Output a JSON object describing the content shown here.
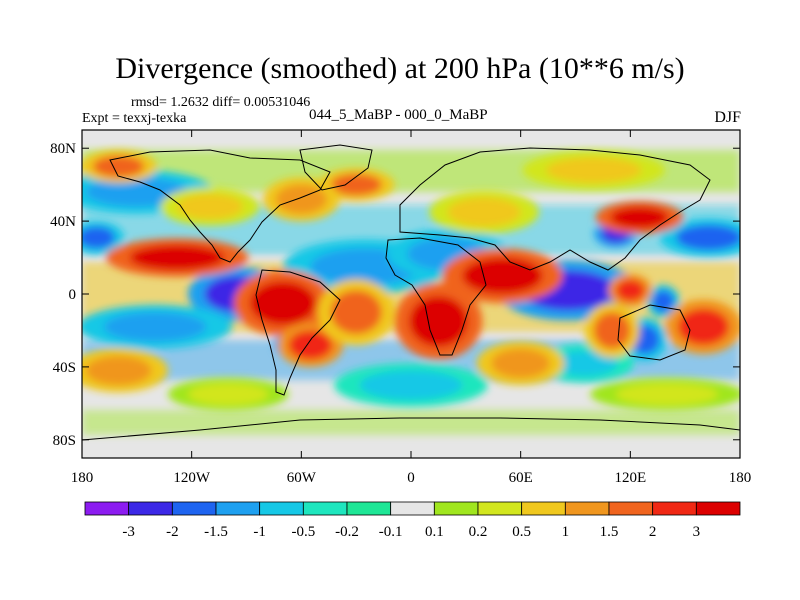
{
  "chart_data": {
    "type": "heatmap",
    "title": "Divergence (smoothed) at 200 hPa (10**6 m/s)",
    "stats_text": "rmsd= 1.2632 diff= 0.00531046",
    "experiment_text": "Expt = texxj-texka",
    "subtitle": "044_5_MaBP - 000_0_MaBP",
    "season": "DJF",
    "x_ticks": [
      "180",
      "120W",
      "60W",
      "0",
      "60E",
      "120E",
      "180"
    ],
    "y_ticks": [
      "80N",
      "40N",
      "0",
      "40S",
      "80S"
    ],
    "xlim": [
      -180,
      180
    ],
    "ylim": [
      -90,
      90
    ],
    "colorbar": {
      "labels": [
        "-3",
        "-2",
        "-1.5",
        "-1",
        "-0.5",
        "-0.2",
        "-0.1",
        "0.1",
        "0.2",
        "0.5",
        "1",
        "1.5",
        "2",
        "3"
      ],
      "colors": [
        "#8c1cf0",
        "#3c28e6",
        "#1e64f0",
        "#1ea0f0",
        "#16c8e6",
        "#1ee6be",
        "#1ee696",
        "#e6e6e6",
        "#a0e61e",
        "#d2e61e",
        "#f0c81e",
        "#f0961e",
        "#f0641e",
        "#f02814",
        "#dc0000"
      ]
    },
    "blobs": [
      {
        "lon": -95,
        "lat": 0,
        "rx": 18,
        "ry": 10,
        "level": -3
      },
      {
        "lon": 86,
        "lat": 2,
        "rx": 26,
        "ry": 11,
        "level": -3
      },
      {
        "lon": -63,
        "lat": -27,
        "rx": 8,
        "ry": 6,
        "level": -3
      },
      {
        "lon": 112,
        "lat": 33,
        "rx": 8,
        "ry": 5,
        "level": -3
      },
      {
        "lon": 163,
        "lat": 31,
        "rx": 18,
        "ry": 7,
        "level": -2
      },
      {
        "lon": -172,
        "lat": 31,
        "rx": 10,
        "ry": 6,
        "level": -2
      },
      {
        "lon": 128,
        "lat": -25,
        "rx": 8,
        "ry": 8,
        "level": -2
      },
      {
        "lon": 138,
        "lat": -4,
        "rx": 6,
        "ry": 6,
        "level": -2
      },
      {
        "lon": -150,
        "lat": 56,
        "rx": 28,
        "ry": 8,
        "level": -1.5
      },
      {
        "lon": -25,
        "lat": 15,
        "rx": 30,
        "ry": 10,
        "level": -1.5
      },
      {
        "lon": 20,
        "lat": 22,
        "rx": 22,
        "ry": 9,
        "level": -1.5
      },
      {
        "lon": -140,
        "lat": -18,
        "rx": 28,
        "ry": 8,
        "level": -1.5
      },
      {
        "lon": 95,
        "lat": -38,
        "rx": 18,
        "ry": 7,
        "level": -1
      },
      {
        "lon": 0,
        "lat": -50,
        "rx": 28,
        "ry": 8,
        "level": -1
      },
      {
        "lon": -128,
        "lat": 20,
        "rx": 26,
        "ry": 7,
        "level": 3
      },
      {
        "lon": -70,
        "lat": -5,
        "rx": 18,
        "ry": 12,
        "level": 3
      },
      {
        "lon": 15,
        "lat": -15,
        "rx": 16,
        "ry": 14,
        "level": 3
      },
      {
        "lon": 50,
        "lat": 10,
        "rx": 22,
        "ry": 10,
        "level": 3
      },
      {
        "lon": 125,
        "lat": 42,
        "rx": 16,
        "ry": 6,
        "level": 3
      },
      {
        "lon": 160,
        "lat": -18,
        "rx": 14,
        "ry": 10,
        "level": 2
      },
      {
        "lon": 120,
        "lat": 2,
        "rx": 8,
        "ry": 6,
        "level": 2
      },
      {
        "lon": -55,
        "lat": -28,
        "rx": 12,
        "ry": 8,
        "level": 2
      },
      {
        "lon": 110,
        "lat": -20,
        "rx": 10,
        "ry": 10,
        "level": 1.5
      },
      {
        "lon": -160,
        "lat": 70,
        "rx": 14,
        "ry": 6,
        "level": 1.5
      },
      {
        "lon": -30,
        "lat": 60,
        "rx": 14,
        "ry": 6,
        "level": 1.5
      },
      {
        "lon": -30,
        "lat": -10,
        "rx": 14,
        "ry": 12,
        "level": 1.5
      },
      {
        "lon": -60,
        "lat": 52,
        "rx": 14,
        "ry": 8,
        "level": 1
      },
      {
        "lon": -160,
        "lat": -42,
        "rx": 18,
        "ry": 8,
        "level": 1
      },
      {
        "lon": 60,
        "lat": -38,
        "rx": 16,
        "ry": 8,
        "level": 1
      },
      {
        "lon": 40,
        "lat": 45,
        "rx": 20,
        "ry": 8,
        "level": 0.5
      },
      {
        "lon": -110,
        "lat": 48,
        "rx": 18,
        "ry": 7,
        "level": 0.5
      },
      {
        "lon": 100,
        "lat": 68,
        "rx": 26,
        "ry": 7,
        "level": 0.5
      },
      {
        "lon": -100,
        "lat": -55,
        "rx": 22,
        "ry": 6,
        "level": 0.2
      },
      {
        "lon": 140,
        "lat": -55,
        "rx": 28,
        "ry": 6,
        "level": 0.2
      }
    ]
  }
}
